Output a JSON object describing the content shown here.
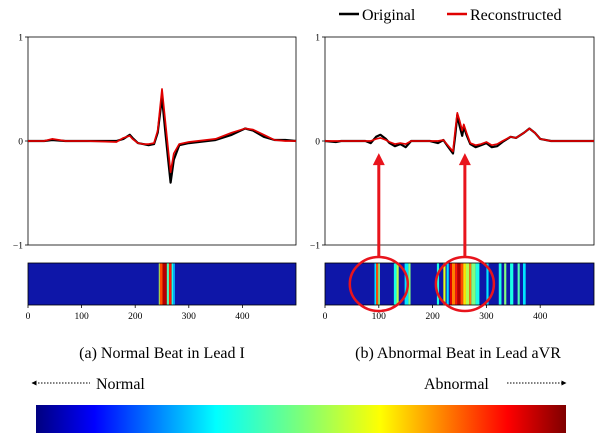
{
  "chart_data": [
    {
      "id": "a",
      "type": "line",
      "caption": "(a) Normal Beat in Lead  I",
      "xlim": [
        0,
        500
      ],
      "ylim": [
        -1,
        1
      ],
      "yticks": [
        {
          "v": 1,
          "label": "1"
        },
        {
          "v": 0,
          "label": "0"
        },
        {
          "v": -1,
          "label": "−1"
        }
      ],
      "series": [
        {
          "name": "Original",
          "color": "#000000",
          "points": [
            [
              0,
              0
            ],
            [
              30,
              0
            ],
            [
              45,
              0.01
            ],
            [
              70,
              0
            ],
            [
              110,
              0
            ],
            [
              165,
              0
            ],
            [
              178,
              0.02
            ],
            [
              190,
              0.06
            ],
            [
              195,
              0.03
            ],
            [
              205,
              -0.02
            ],
            [
              215,
              -0.03
            ],
            [
              225,
              -0.04
            ],
            [
              235,
              -0.03
            ],
            [
              242,
              0.08
            ],
            [
              250,
              0.42
            ],
            [
              256,
              0.1
            ],
            [
              262,
              -0.2
            ],
            [
              266,
              -0.4
            ],
            [
              272,
              -0.18
            ],
            [
              282,
              -0.04
            ],
            [
              300,
              -0.02
            ],
            [
              350,
              0.01
            ],
            [
              380,
              0.06
            ],
            [
              405,
              0.12
            ],
            [
              420,
              0.1
            ],
            [
              440,
              0.04
            ],
            [
              460,
              0.01
            ],
            [
              480,
              0.01
            ],
            [
              500,
              0
            ]
          ]
        },
        {
          "name": "Reconstructed",
          "color": "#e00000",
          "points": [
            [
              0,
              0
            ],
            [
              30,
              0
            ],
            [
              45,
              0.02
            ],
            [
              70,
              0
            ],
            [
              110,
              0
            ],
            [
              165,
              -0.01
            ],
            [
              178,
              0.03
            ],
            [
              190,
              0.05
            ],
            [
              195,
              0.02
            ],
            [
              205,
              -0.02
            ],
            [
              215,
              -0.03
            ],
            [
              225,
              -0.03
            ],
            [
              235,
              -0.02
            ],
            [
              242,
              0.1
            ],
            [
              250,
              0.5
            ],
            [
              256,
              0.2
            ],
            [
              262,
              -0.1
            ],
            [
              266,
              -0.3
            ],
            [
              272,
              -0.12
            ],
            [
              282,
              -0.03
            ],
            [
              300,
              -0.01
            ],
            [
              350,
              0.02
            ],
            [
              380,
              0.08
            ],
            [
              405,
              0.12
            ],
            [
              420,
              0.11
            ],
            [
              440,
              0.06
            ],
            [
              460,
              0.01
            ],
            [
              480,
              0
            ],
            [
              500,
              0
            ]
          ]
        }
      ],
      "heat_xticks": [
        0,
        100,
        200,
        300,
        400
      ],
      "heat_bands": [
        {
          "x0": 244,
          "x1": 246,
          "v": 0.55
        },
        {
          "x0": 246,
          "x1": 251,
          "v": 0.8
        },
        {
          "x0": 251,
          "x1": 259,
          "v": 0.95
        },
        {
          "x0": 259,
          "x1": 263,
          "v": 0.45
        },
        {
          "x0": 263,
          "x1": 268,
          "v": 0.85
        },
        {
          "x0": 268,
          "x1": 271,
          "v": 0.4
        },
        {
          "x0": 271,
          "x1": 274,
          "v": 0.3
        }
      ]
    },
    {
      "id": "b",
      "type": "line",
      "caption": "(b) Abnormal Beat in Lead aVR",
      "xlim": [
        0,
        500
      ],
      "ylim": [
        -1,
        1
      ],
      "yticks": [
        {
          "v": 1,
          "label": "1"
        },
        {
          "v": 0,
          "label": "0"
        },
        {
          "v": -1,
          "label": "−1"
        }
      ],
      "series": [
        {
          "name": "Original",
          "color": "#000000",
          "points": [
            [
              0,
              0
            ],
            [
              20,
              -0.01
            ],
            [
              30,
              0
            ],
            [
              45,
              0
            ],
            [
              75,
              0
            ],
            [
              85,
              -0.02
            ],
            [
              95,
              0.04
            ],
            [
              103,
              0.06
            ],
            [
              113,
              0.02
            ],
            [
              120,
              -0.02
            ],
            [
              130,
              -0.05
            ],
            [
              140,
              -0.03
            ],
            [
              150,
              -0.06
            ],
            [
              160,
              0
            ],
            [
              175,
              0
            ],
            [
              195,
              0
            ],
            [
              210,
              -0.02
            ],
            [
              220,
              0.01
            ],
            [
              228,
              -0.05
            ],
            [
              238,
              -0.12
            ],
            [
              242,
              0.05
            ],
            [
              246,
              0.25
            ],
            [
              250,
              0.15
            ],
            [
              255,
              0.05
            ],
            [
              258,
              0.14
            ],
            [
              263,
              0.06
            ],
            [
              270,
              -0.03
            ],
            [
              280,
              -0.06
            ],
            [
              290,
              -0.04
            ],
            [
              300,
              -0.02
            ],
            [
              310,
              -0.06
            ],
            [
              320,
              -0.05
            ],
            [
              330,
              -0.01
            ],
            [
              345,
              0.04
            ],
            [
              355,
              0.03
            ],
            [
              370,
              0.08
            ],
            [
              380,
              0.12
            ],
            [
              390,
              0.08
            ],
            [
              400,
              0.02
            ],
            [
              420,
              0
            ],
            [
              470,
              0
            ],
            [
              500,
              0
            ]
          ]
        },
        {
          "name": "Reconstructed",
          "color": "#e00000",
          "points": [
            [
              0,
              0
            ],
            [
              20,
              0
            ],
            [
              30,
              0
            ],
            [
              45,
              0
            ],
            [
              75,
              0
            ],
            [
              85,
              0
            ],
            [
              95,
              0.02
            ],
            [
              103,
              0.03
            ],
            [
              113,
              0.01
            ],
            [
              120,
              -0.01
            ],
            [
              130,
              -0.03
            ],
            [
              140,
              -0.02
            ],
            [
              150,
              -0.03
            ],
            [
              160,
              0
            ],
            [
              175,
              0
            ],
            [
              195,
              0
            ],
            [
              210,
              0
            ],
            [
              220,
              0.01
            ],
            [
              228,
              -0.04
            ],
            [
              238,
              -0.1
            ],
            [
              242,
              0.1
            ],
            [
              246,
              0.27
            ],
            [
              250,
              0.2
            ],
            [
              255,
              0.1
            ],
            [
              258,
              0.16
            ],
            [
              263,
              0.08
            ],
            [
              270,
              -0.02
            ],
            [
              280,
              -0.04
            ],
            [
              290,
              -0.03
            ],
            [
              300,
              -0.01
            ],
            [
              310,
              -0.04
            ],
            [
              320,
              -0.03
            ],
            [
              330,
              0
            ],
            [
              345,
              0.04
            ],
            [
              355,
              0.03
            ],
            [
              370,
              0.08
            ],
            [
              380,
              0.12
            ],
            [
              390,
              0.08
            ],
            [
              400,
              0.02
            ],
            [
              420,
              0
            ],
            [
              470,
              0
            ],
            [
              500,
              0
            ]
          ]
        }
      ],
      "heat_xticks": [
        0,
        100,
        200,
        300,
        400
      ],
      "heat_bands": [
        {
          "x0": 92,
          "x1": 95,
          "v": 0.35
        },
        {
          "x0": 95,
          "x1": 99,
          "v": 0.8
        },
        {
          "x0": 99,
          "x1": 102,
          "v": 0.5
        },
        {
          "x0": 128,
          "x1": 133,
          "v": 0.4
        },
        {
          "x0": 133,
          "x1": 137,
          "v": 0.55
        },
        {
          "x0": 148,
          "x1": 155,
          "v": 0.35
        },
        {
          "x0": 155,
          "x1": 159,
          "v": 0.5
        },
        {
          "x0": 208,
          "x1": 212,
          "v": 0.4
        },
        {
          "x0": 220,
          "x1": 224,
          "v": 0.6
        },
        {
          "x0": 226,
          "x1": 230,
          "v": 0.35
        },
        {
          "x0": 232,
          "x1": 236,
          "v": 0.9
        },
        {
          "x0": 236,
          "x1": 242,
          "v": 0.75
        },
        {
          "x0": 242,
          "x1": 246,
          "v": 0.85
        },
        {
          "x0": 246,
          "x1": 252,
          "v": 0.95
        },
        {
          "x0": 252,
          "x1": 257,
          "v": 0.8
        },
        {
          "x0": 257,
          "x1": 262,
          "v": 0.65
        },
        {
          "x0": 262,
          "x1": 268,
          "v": 0.55
        },
        {
          "x0": 268,
          "x1": 272,
          "v": 0.75
        },
        {
          "x0": 272,
          "x1": 280,
          "v": 0.5
        },
        {
          "x0": 280,
          "x1": 287,
          "v": 0.4
        },
        {
          "x0": 300,
          "x1": 304,
          "v": 0.35
        },
        {
          "x0": 323,
          "x1": 328,
          "v": 0.4
        },
        {
          "x0": 333,
          "x1": 337,
          "v": 0.5
        },
        {
          "x0": 344,
          "x1": 350,
          "v": 0.4
        },
        {
          "x0": 358,
          "x1": 362,
          "v": 0.45
        },
        {
          "x0": 368,
          "x1": 373,
          "v": 0.35
        }
      ],
      "highlights": [
        {
          "cx": 100,
          "arrow_to_y": -0.04
        },
        {
          "cx": 260,
          "arrow_to_y": -0.04
        }
      ]
    }
  ],
  "legend": [
    {
      "name": "Original",
      "color": "#000000"
    },
    {
      "name": "Reconstructed",
      "color": "#e00000"
    }
  ],
  "scale": {
    "left_label": "Normal",
    "right_label": "Abnormal"
  },
  "colors": {
    "highlight": "#e8141c",
    "heat_background": "#0e16a8"
  }
}
